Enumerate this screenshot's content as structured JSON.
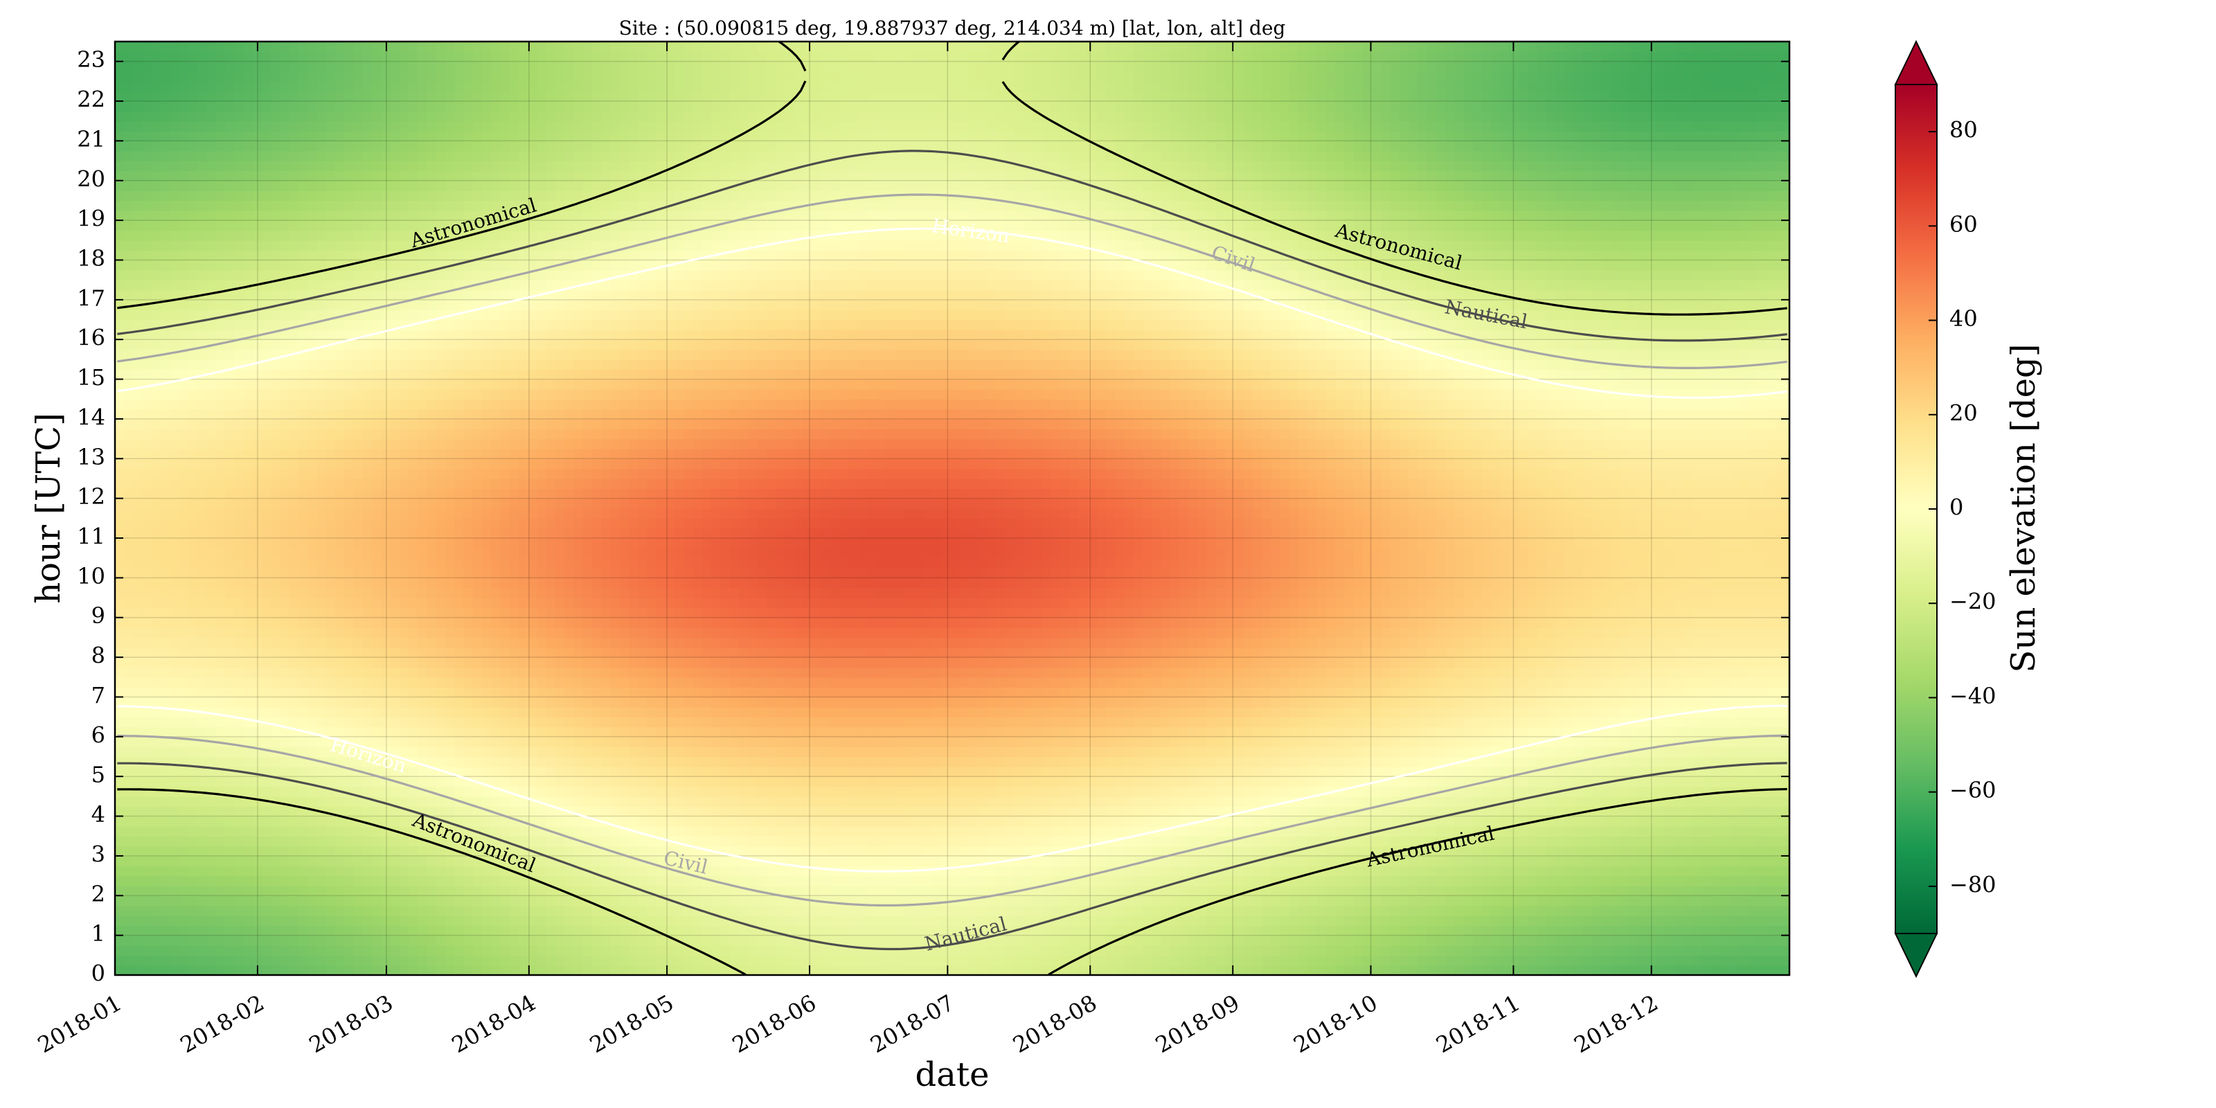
{
  "chart_data": {
    "type": "heatmap",
    "title": "Site : (50.090815 deg, 19.887937 deg, 214.034 m) [lat, lon, alt] deg",
    "xlabel": "date",
    "ylabel": "hour [UTC]",
    "x_ticks": [
      "2018-01",
      "2018-02",
      "2018-03",
      "2018-04",
      "2018-05",
      "2018-06",
      "2018-07",
      "2018-08",
      "2018-09",
      "2018-10",
      "2018-11",
      "2018-12"
    ],
    "y_ticks": [
      "0",
      "1",
      "2",
      "3",
      "4",
      "5",
      "6",
      "7",
      "8",
      "9",
      "10",
      "11",
      "12",
      "13",
      "14",
      "15",
      "16",
      "17",
      "18",
      "19",
      "20",
      "21",
      "22",
      "23"
    ],
    "xlim": [
      "2018-01-01",
      "2018-12-31"
    ],
    "ylim": [
      0,
      23.5
    ],
    "grid": true,
    "site": {
      "lat": 50.090815,
      "lon": 19.887937,
      "alt": 214.034
    },
    "colormap": "RdYlGn_r",
    "colorbar": {
      "label": "Sun elevation [deg]",
      "range": [
        -90,
        90
      ],
      "ticks": [
        "−80",
        "−60",
        "−40",
        "−20",
        "0",
        "20",
        "40",
        "60",
        "80"
      ],
      "extend": "both"
    },
    "contours": [
      {
        "name": "Horizon",
        "elevation": 0,
        "color": "#ffffff",
        "labels": [
          {
            "text": "Horizon",
            "date": "2018-07-06",
            "hour": 18.7
          },
          {
            "text": "Horizon",
            "date": "2018-02-25",
            "hour": 5.5
          }
        ]
      },
      {
        "name": "Civil",
        "elevation": -6,
        "color": "#a6a6a6",
        "labels": [
          {
            "text": "Civil",
            "date": "2018-09-01",
            "hour": 18.0
          },
          {
            "text": "Civil",
            "date": "2018-05-05",
            "hour": 2.8
          }
        ]
      },
      {
        "name": "Nautical",
        "elevation": -12,
        "color": "#4d4d4d",
        "labels": [
          {
            "text": "Nautical",
            "date": "2018-10-26",
            "hour": 16.6
          },
          {
            "text": "Nautical",
            "date": "2018-07-05",
            "hour": 1.0
          }
        ]
      },
      {
        "name": "Astronomical",
        "elevation": -18,
        "color": "#000000",
        "labels": [
          {
            "text": "Astronomical",
            "date": "2018-03-20",
            "hour": 18.9
          },
          {
            "text": "Astronomical",
            "date": "2018-10-07",
            "hour": 18.3
          },
          {
            "text": "Astronomical",
            "date": "2018-03-20",
            "hour": 3.3
          },
          {
            "text": "Astronomical",
            "date": "2018-10-14",
            "hour": 3.2
          }
        ]
      }
    ]
  }
}
